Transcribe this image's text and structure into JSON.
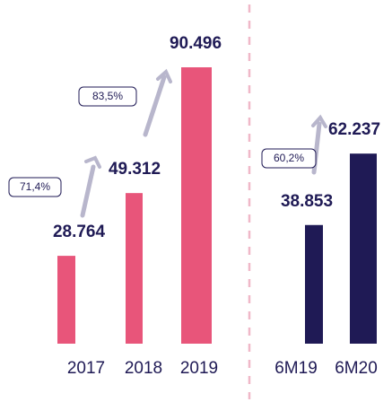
{
  "chart_data": [
    {
      "type": "bar",
      "categories": [
        "2017",
        "2018",
        "2019"
      ],
      "values": [
        28764,
        49312,
        90496
      ],
      "value_labels": [
        "28.764",
        "49.312",
        "90.496"
      ],
      "color": "#e8557a",
      "annotations": [
        "71,4%",
        "83,5%"
      ]
    },
    {
      "type": "bar",
      "categories": [
        "6M19",
        "6M20"
      ],
      "values": [
        38853,
        62237
      ],
      "value_labels": [
        "38.853",
        "62.237"
      ],
      "color": "#1f1a55",
      "annotations": [
        "60,2%"
      ]
    }
  ]
}
